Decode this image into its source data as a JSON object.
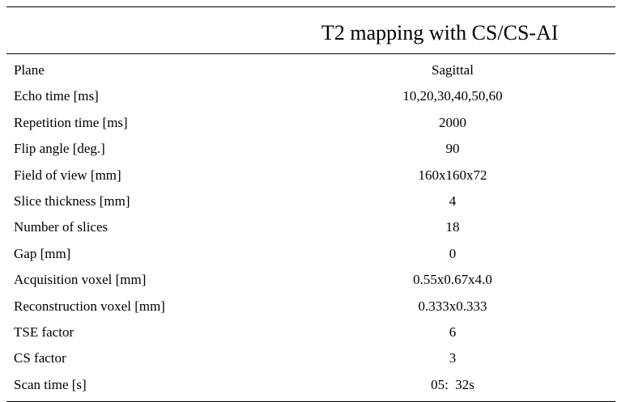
{
  "table": {
    "header_title": "T2 mapping with CS/CS-AI",
    "rows": [
      {
        "parameter": "Plane",
        "value": "Sagittal"
      },
      {
        "parameter": "Echo time [ms]",
        "value": "10,20,30,40,50,60"
      },
      {
        "parameter": "Repetition time [ms]",
        "value": "2000"
      },
      {
        "parameter": "Flip angle [deg.]",
        "value": "90"
      },
      {
        "parameter": "Field of view [mm]",
        "value": "160x160x72"
      },
      {
        "parameter": "Slice thickness [mm]",
        "value": "4"
      },
      {
        "parameter": "Number of slices",
        "value": "18"
      },
      {
        "parameter": "Gap [mm]",
        "value": "0"
      },
      {
        "parameter": "Acquisition voxel [mm]",
        "value": "0.55x0.67x4.0"
      },
      {
        "parameter": "Reconstruction voxel [mm]",
        "value": "0.333x0.333"
      },
      {
        "parameter": "TSE factor",
        "value": "6"
      },
      {
        "parameter": "CS factor",
        "value": "3"
      },
      {
        "parameter": "Scan time [s]",
        "value": "05:  32s"
      }
    ]
  }
}
